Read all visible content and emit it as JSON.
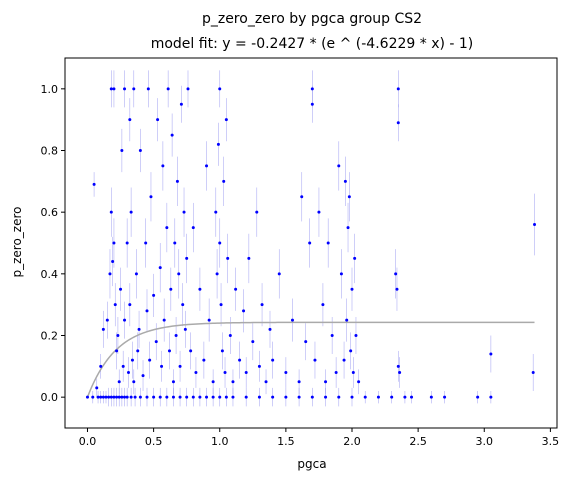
{
  "chart_data": {
    "type": "scatter",
    "title_line1": "p_zero_zero by pgca group CS2",
    "title_line2": "model fit: y = -0.2427 * (e ^ (-4.6229 * x) - 1)",
    "xlabel": "pgca",
    "ylabel": "p_zero_zero",
    "xlim": [
      -0.17,
      3.55
    ],
    "ylim": [
      -0.1,
      1.1
    ],
    "x_ticks": [
      "0.0",
      "0.5",
      "1.0",
      "1.5",
      "2.0",
      "2.5",
      "3.0",
      "3.5"
    ],
    "x_tick_values": [
      0,
      0.5,
      1.0,
      1.5,
      2.0,
      2.5,
      3.0,
      3.5
    ],
    "y_ticks": [
      "0.0",
      "0.2",
      "0.4",
      "0.6",
      "0.8",
      "1.0"
    ],
    "y_tick_values": [
      0,
      0.2,
      0.4,
      0.6,
      0.8,
      1.0
    ],
    "grid": false,
    "point_color": "#0000ff",
    "errorbar_color": "#8c8cf0",
    "fit_color": "#aaaaaa",
    "fit": {
      "a": -0.2427,
      "b": -4.6229
    },
    "points": [
      [
        0.0,
        0.0,
        0.0
      ],
      [
        0.05,
        0.69,
        0.04
      ],
      [
        0.04,
        0.0,
        0.02
      ],
      [
        0.08,
        0.0,
        0.02
      ],
      [
        0.1,
        0.0,
        0.02
      ],
      [
        0.12,
        0.0,
        0.02
      ],
      [
        0.14,
        0.0,
        0.02
      ],
      [
        0.16,
        0.0,
        0.03
      ],
      [
        0.18,
        0.0,
        0.03
      ],
      [
        0.2,
        0.0,
        0.03
      ],
      [
        0.22,
        0.0,
        0.03
      ],
      [
        0.24,
        0.0,
        0.03
      ],
      [
        0.26,
        0.0,
        0.03
      ],
      [
        0.28,
        0.0,
        0.03
      ],
      [
        0.3,
        0.0,
        0.03
      ],
      [
        0.33,
        0.0,
        0.03
      ],
      [
        0.36,
        0.0,
        0.03
      ],
      [
        0.4,
        0.0,
        0.03
      ],
      [
        0.45,
        0.0,
        0.03
      ],
      [
        0.5,
        0.0,
        0.03
      ],
      [
        0.55,
        0.0,
        0.03
      ],
      [
        0.6,
        0.0,
        0.03
      ],
      [
        0.65,
        0.0,
        0.03
      ],
      [
        0.7,
        0.0,
        0.03
      ],
      [
        0.75,
        0.0,
        0.03
      ],
      [
        0.8,
        0.0,
        0.03
      ],
      [
        0.85,
        0.0,
        0.03
      ],
      [
        0.9,
        0.0,
        0.03
      ],
      [
        0.95,
        0.0,
        0.03
      ],
      [
        1.0,
        0.0,
        0.03
      ],
      [
        1.05,
        0.0,
        0.03
      ],
      [
        1.1,
        0.0,
        0.03
      ],
      [
        1.2,
        0.0,
        0.03
      ],
      [
        1.3,
        0.0,
        0.03
      ],
      [
        1.4,
        0.0,
        0.03
      ],
      [
        1.5,
        0.0,
        0.03
      ],
      [
        1.6,
        0.0,
        0.03
      ],
      [
        1.7,
        0.0,
        0.03
      ],
      [
        1.8,
        0.0,
        0.03
      ],
      [
        1.9,
        0.0,
        0.03
      ],
      [
        2.0,
        0.0,
        0.03
      ],
      [
        2.1,
        0.0,
        0.02
      ],
      [
        2.2,
        0.0,
        0.02
      ],
      [
        2.3,
        0.0,
        0.02
      ],
      [
        2.4,
        0.0,
        0.02
      ],
      [
        2.45,
        0.0,
        0.02
      ],
      [
        2.6,
        0.0,
        0.02
      ],
      [
        2.7,
        0.0,
        0.02
      ],
      [
        2.95,
        0.0,
        0.02
      ],
      [
        3.05,
        0.0,
        0.02
      ],
      [
        0.07,
        0.03,
        0.03
      ],
      [
        0.1,
        0.1,
        0.04
      ],
      [
        0.12,
        0.22,
        0.06
      ],
      [
        0.15,
        0.25,
        0.06
      ],
      [
        0.17,
        0.4,
        0.08
      ],
      [
        0.18,
        0.6,
        0.08
      ],
      [
        0.19,
        0.44,
        0.08
      ],
      [
        0.2,
        0.5,
        0.08
      ],
      [
        0.21,
        0.3,
        0.07
      ],
      [
        0.22,
        0.15,
        0.06
      ],
      [
        0.18,
        1.0,
        0.06
      ],
      [
        0.2,
        1.0,
        0.06
      ],
      [
        0.23,
        0.2,
        0.06
      ],
      [
        0.24,
        0.05,
        0.04
      ],
      [
        0.25,
        0.35,
        0.07
      ],
      [
        0.26,
        0.8,
        0.07
      ],
      [
        0.27,
        0.1,
        0.05
      ],
      [
        0.28,
        0.25,
        0.06
      ],
      [
        0.28,
        1.0,
        0.06
      ],
      [
        0.3,
        0.5,
        0.08
      ],
      [
        0.31,
        0.08,
        0.05
      ],
      [
        0.32,
        0.3,
        0.07
      ],
      [
        0.32,
        0.9,
        0.07
      ],
      [
        0.33,
        0.6,
        0.08
      ],
      [
        0.34,
        0.12,
        0.06
      ],
      [
        0.35,
        0.05,
        0.04
      ],
      [
        0.35,
        1.0,
        0.06
      ],
      [
        0.37,
        0.4,
        0.08
      ],
      [
        0.38,
        0.15,
        0.06
      ],
      [
        0.39,
        0.22,
        0.06
      ],
      [
        0.4,
        0.8,
        0.07
      ],
      [
        0.42,
        0.07,
        0.05
      ],
      [
        0.44,
        0.5,
        0.08
      ],
      [
        0.45,
        0.28,
        0.07
      ],
      [
        0.46,
        1.0,
        0.06
      ],
      [
        0.47,
        0.12,
        0.06
      ],
      [
        0.48,
        0.65,
        0.08
      ],
      [
        0.5,
        0.33,
        0.07
      ],
      [
        0.52,
        0.18,
        0.06
      ],
      [
        0.53,
        0.9,
        0.07
      ],
      [
        0.55,
        0.42,
        0.08
      ],
      [
        0.56,
        0.1,
        0.05
      ],
      [
        0.57,
        0.75,
        0.08
      ],
      [
        0.58,
        0.25,
        0.07
      ],
      [
        0.6,
        0.55,
        0.08
      ],
      [
        0.61,
        1.0,
        0.06
      ],
      [
        0.62,
        0.15,
        0.06
      ],
      [
        0.63,
        0.35,
        0.07
      ],
      [
        0.64,
        0.85,
        0.07
      ],
      [
        0.65,
        0.05,
        0.04
      ],
      [
        0.66,
        0.5,
        0.08
      ],
      [
        0.67,
        0.2,
        0.06
      ],
      [
        0.68,
        0.7,
        0.08
      ],
      [
        0.69,
        0.4,
        0.08
      ],
      [
        0.7,
        0.1,
        0.05
      ],
      [
        0.71,
        0.95,
        0.06
      ],
      [
        0.72,
        0.3,
        0.07
      ],
      [
        0.73,
        0.6,
        0.08
      ],
      [
        0.74,
        0.22,
        0.06
      ],
      [
        0.75,
        0.45,
        0.08
      ],
      [
        0.76,
        1.0,
        0.06
      ],
      [
        0.78,
        0.15,
        0.06
      ],
      [
        0.8,
        0.55,
        0.08
      ],
      [
        0.82,
        0.08,
        0.05
      ],
      [
        0.85,
        0.35,
        0.07
      ],
      [
        0.88,
        0.12,
        0.06
      ],
      [
        0.9,
        0.75,
        0.08
      ],
      [
        0.92,
        0.25,
        0.07
      ],
      [
        0.95,
        0.05,
        0.04
      ],
      [
        0.97,
        0.6,
        0.08
      ],
      [
        0.98,
        0.4,
        0.08
      ],
      [
        0.99,
        0.82,
        0.07
      ],
      [
        1.0,
        1.0,
        0.06
      ],
      [
        1.0,
        0.5,
        0.08
      ],
      [
        1.01,
        0.3,
        0.07
      ],
      [
        1.02,
        0.15,
        0.06
      ],
      [
        1.03,
        0.7,
        0.08
      ],
      [
        1.04,
        0.08,
        0.05
      ],
      [
        1.05,
        0.9,
        0.07
      ],
      [
        1.06,
        0.45,
        0.08
      ],
      [
        1.08,
        0.2,
        0.06
      ],
      [
        1.1,
        0.05,
        0.04
      ],
      [
        1.12,
        0.35,
        0.07
      ],
      [
        1.15,
        0.12,
        0.06
      ],
      [
        1.18,
        0.28,
        0.07
      ],
      [
        1.2,
        0.08,
        0.05
      ],
      [
        1.22,
        0.45,
        0.08
      ],
      [
        1.25,
        0.18,
        0.06
      ],
      [
        1.28,
        0.6,
        0.08
      ],
      [
        1.3,
        0.1,
        0.05
      ],
      [
        1.32,
        0.3,
        0.07
      ],
      [
        1.35,
        0.05,
        0.04
      ],
      [
        1.38,
        0.22,
        0.06
      ],
      [
        1.4,
        0.12,
        0.06
      ],
      [
        1.45,
        0.4,
        0.08
      ],
      [
        1.5,
        0.08,
        0.05
      ],
      [
        1.55,
        0.25,
        0.07
      ],
      [
        1.6,
        0.05,
        0.04
      ],
      [
        1.62,
        0.65,
        0.08
      ],
      [
        1.65,
        0.18,
        0.06
      ],
      [
        1.68,
        0.5,
        0.08
      ],
      [
        1.7,
        1.0,
        0.06
      ],
      [
        1.7,
        0.95,
        0.06
      ],
      [
        1.72,
        0.12,
        0.06
      ],
      [
        1.75,
        0.6,
        0.08
      ],
      [
        1.78,
        0.3,
        0.07
      ],
      [
        1.8,
        0.05,
        0.04
      ],
      [
        1.82,
        0.5,
        0.08
      ],
      [
        1.85,
        0.2,
        0.06
      ],
      [
        1.88,
        0.08,
        0.05
      ],
      [
        1.9,
        0.75,
        0.08
      ],
      [
        1.92,
        0.4,
        0.08
      ],
      [
        1.94,
        0.12,
        0.06
      ],
      [
        1.95,
        0.7,
        0.08
      ],
      [
        1.96,
        0.25,
        0.07
      ],
      [
        1.97,
        0.55,
        0.08
      ],
      [
        1.98,
        0.65,
        0.08
      ],
      [
        1.99,
        0.15,
        0.06
      ],
      [
        2.0,
        0.35,
        0.07
      ],
      [
        2.01,
        0.08,
        0.05
      ],
      [
        2.02,
        0.45,
        0.08
      ],
      [
        2.03,
        0.2,
        0.06
      ],
      [
        2.05,
        0.05,
        0.04
      ],
      [
        2.35,
        1.0,
        0.06
      ],
      [
        2.35,
        0.89,
        0.06
      ],
      [
        2.33,
        0.4,
        0.08
      ],
      [
        2.34,
        0.35,
        0.07
      ],
      [
        2.35,
        0.1,
        0.05
      ],
      [
        2.36,
        0.08,
        0.05
      ],
      [
        3.05,
        0.14,
        0.06
      ],
      [
        3.38,
        0.56,
        0.1
      ],
      [
        3.37,
        0.08,
        0.06
      ]
    ]
  }
}
